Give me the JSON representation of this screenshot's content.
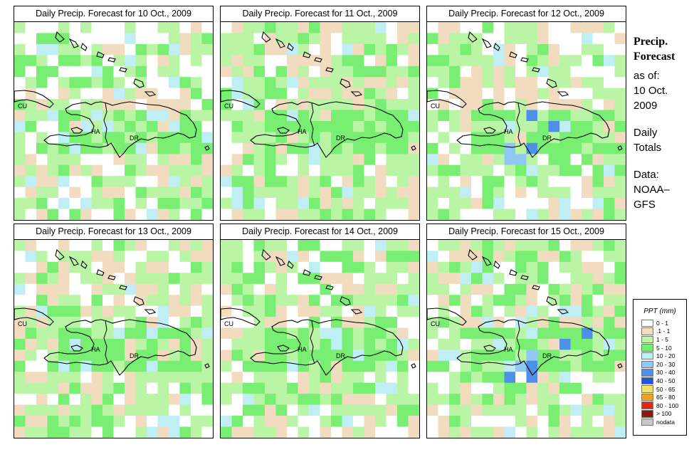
{
  "panels": [
    {
      "title": "Daily Precip. Forecast for  10 Oct., 2009",
      "seed": 11
    },
    {
      "title": "Daily Precip. Forecast for  11 Oct., 2009",
      "seed": 22
    },
    {
      "title": "Daily Precip. Forecast for  12 Oct., 2009",
      "seed": 33
    },
    {
      "title": "Daily Precip. Forecast for  13 Oct., 2009",
      "seed": 44
    },
    {
      "title": "Daily Precip. Forecast for  14 Oct., 2009",
      "seed": 55
    },
    {
      "title": "Daily Precip. Forecast for  15 Oct., 2009",
      "seed": 66
    }
  ],
  "map_labels": {
    "cu": "CU",
    "ha": "HA",
    "dr": "DR"
  },
  "sidebar": {
    "title_line1": "Precip.",
    "title_line2": "Forecast",
    "asof": "as of:",
    "date1": "10 Oct.",
    "date2": "2009",
    "daily1": "Daily",
    "daily2": "Totals",
    "data1": "Data:",
    "data2": "NOAA–",
    "data3": "GFS"
  },
  "legend": {
    "title": "PPT (mm)",
    "items": [
      {
        "label": "0 - 1",
        "color": "#ffffff"
      },
      {
        "label": ".1 - 1",
        "color": "#f2dcbf"
      },
      {
        "label": "1 - 5",
        "color": "#b9f5a5"
      },
      {
        "label": "5 - 10",
        "color": "#78ef72"
      },
      {
        "label": "10 - 20",
        "color": "#bfeff5"
      },
      {
        "label": "20 - 30",
        "color": "#8fc8f2"
      },
      {
        "label": "30 - 40",
        "color": "#4e8fe8"
      },
      {
        "label": "40 - 50",
        "color": "#1f55d6"
      },
      {
        "label": "50 - 65",
        "color": "#f5e06a"
      },
      {
        "label": "65 - 80",
        "color": "#f5a020"
      },
      {
        "label": "80 - 100",
        "color": "#e02a10"
      },
      {
        "label": "> 100",
        "color": "#8a1a10"
      },
      {
        "label": "nodata",
        "color": "#c8c8c8"
      }
    ]
  }
}
